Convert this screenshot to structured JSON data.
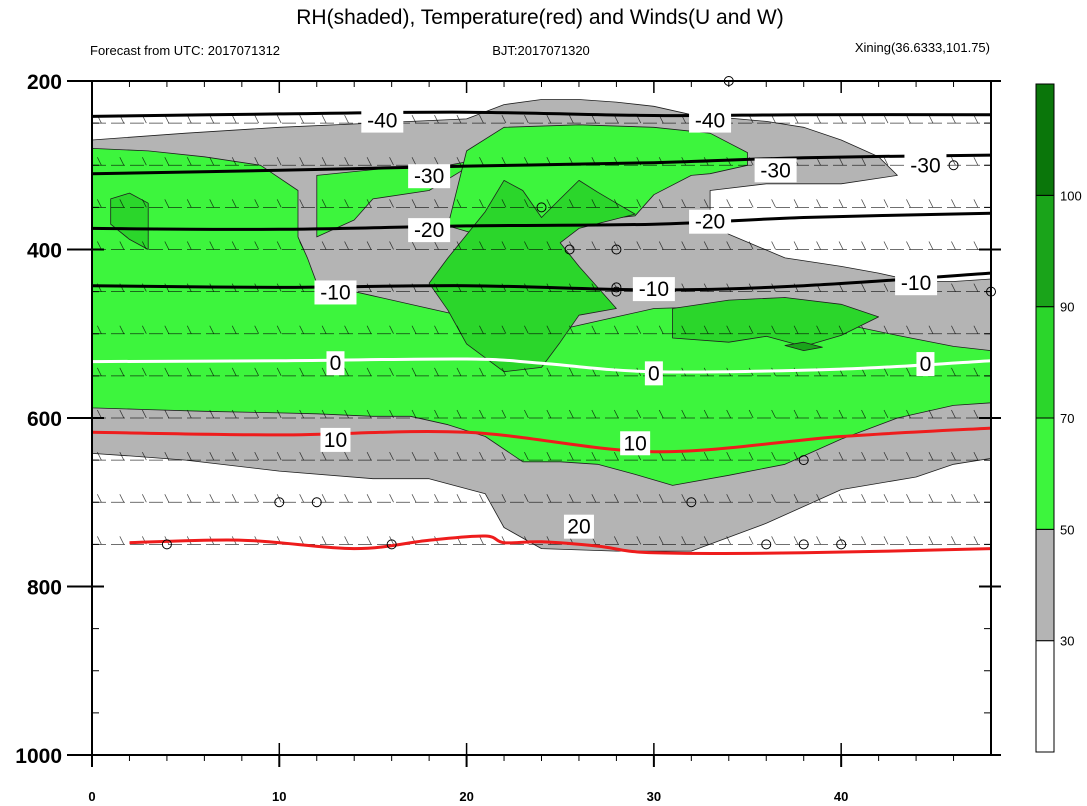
{
  "chart_data": {
    "type": "heatmap",
    "title": "RH(shaded), Temperature(red) and Winds(U and W)",
    "subtitle_left": "Forecast from UTC: 2017071312",
    "subtitle_center": "BJT:2017071320",
    "subtitle_right": "Xining(36.6333,101.75)",
    "xlabel": "",
    "ylabel": "",
    "xlim": [
      0,
      48
    ],
    "ylim": [
      1000,
      200
    ],
    "y_axis_reversed": true,
    "x_ticks": [
      0,
      10,
      20,
      30,
      40
    ],
    "y_ticks": [
      200,
      400,
      600,
      800,
      1000
    ],
    "rh_shading": {
      "levels": [
        30,
        50,
        70,
        90,
        100
      ],
      "colorbar_labels": [
        "30",
        "50",
        "70",
        "90",
        "100"
      ],
      "colors": [
        "#ffffff",
        "#b4b4b4",
        "#3df53d",
        "#2bd62b",
        "#1aa41a",
        "#0a760a"
      ],
      "regions": [
        {
          "class": "30-50",
          "points": [
            [
              0,
              270
            ],
            [
              5,
              262
            ],
            [
              10,
              255
            ],
            [
              15,
              250
            ],
            [
              20,
              245
            ],
            [
              22,
              228
            ],
            [
              24,
              222
            ],
            [
              26,
              222
            ],
            [
              28,
              225
            ],
            [
              30,
              230
            ],
            [
              32,
              240
            ],
            [
              36,
              248
            ],
            [
              38,
              255
            ],
            [
              40,
              270
            ],
            [
              42,
              290
            ],
            [
              43,
              312
            ],
            [
              40,
              322
            ],
            [
              36,
              322
            ],
            [
              33,
              330
            ],
            [
              33,
              365
            ],
            [
              34,
              382
            ],
            [
              37,
              410
            ],
            [
              40,
              420
            ],
            [
              42,
              428
            ],
            [
              44,
              438
            ],
            [
              46,
              438
            ],
            [
              48,
              435
            ],
            [
              48,
              648
            ],
            [
              46,
              655
            ],
            [
              44,
              670
            ],
            [
              40,
              685
            ],
            [
              36,
              725
            ],
            [
              32,
              758
            ],
            [
              28,
              758
            ],
            [
              24,
              755
            ],
            [
              22,
              730
            ],
            [
              21,
              690
            ],
            [
              18,
              672
            ],
            [
              15,
              672
            ],
            [
              10,
              663
            ],
            [
              5,
              650
            ],
            [
              2,
              645
            ],
            [
              0,
              642
            ]
          ]
        },
        {
          "class": "50-70",
          "points": [
            [
              0,
              280
            ],
            [
              3,
              283
            ],
            [
              6,
              290
            ],
            [
              9,
              300
            ],
            [
              11,
              330
            ],
            [
              11,
              385
            ],
            [
              11.5,
              410
            ],
            [
              12,
              440
            ],
            [
              15,
              455
            ],
            [
              18,
              470
            ],
            [
              21,
              485
            ],
            [
              23,
              492
            ],
            [
              25,
              495
            ],
            [
              28,
              480
            ],
            [
              30,
              470
            ],
            [
              33,
              468
            ],
            [
              37,
              480
            ],
            [
              40,
              488
            ],
            [
              43,
              502
            ],
            [
              46,
              515
            ],
            [
              48,
              520
            ],
            [
              48,
              582
            ],
            [
              46,
              585
            ],
            [
              43,
              600
            ],
            [
              40,
              625
            ],
            [
              37,
              655
            ],
            [
              34,
              668
            ],
            [
              31,
              680
            ],
            [
              29,
              667
            ],
            [
              27,
              655
            ],
            [
              25,
              652
            ],
            [
              23,
              652
            ],
            [
              21,
              622
            ],
            [
              19,
              608
            ],
            [
              17,
              598
            ],
            [
              15,
              598
            ],
            [
              12,
              595
            ],
            [
              10,
              594
            ],
            [
              6,
              592
            ],
            [
              3,
              590
            ],
            [
              0,
              588
            ]
          ]
        },
        {
          "class": "50-70",
          "points": [
            [
              12,
              312
            ],
            [
              16,
              303
            ],
            [
              19,
              300
            ],
            [
              20,
              296
            ],
            [
              20,
              303
            ],
            [
              18,
              330
            ],
            [
              15,
              340
            ],
            [
              14,
              365
            ],
            [
              12,
              385
            ]
          ]
        },
        {
          "class": "50-70",
          "points": [
            [
              20,
              283
            ],
            [
              22,
              255
            ],
            [
              26,
              252
            ],
            [
              30,
              255
            ],
            [
              33,
              262
            ],
            [
              35,
              285
            ],
            [
              35,
              300
            ],
            [
              33,
              310
            ],
            [
              32,
              312
            ],
            [
              30,
              335
            ],
            [
              29,
              360
            ],
            [
              25,
              370
            ],
            [
              23,
              388
            ],
            [
              21,
              385
            ],
            [
              19,
              372
            ]
          ]
        },
        {
          "class": "70-90",
          "points": [
            [
              21,
              355
            ],
            [
              22,
              318
            ],
            [
              23,
              330
            ],
            [
              24,
              362
            ],
            [
              25,
              340
            ],
            [
              26,
              318
            ],
            [
              27,
              332
            ],
            [
              28,
              345
            ],
            [
              29,
              358
            ],
            [
              26,
              375
            ],
            [
              25,
              392
            ],
            [
              26,
              420
            ],
            [
              27,
              445
            ],
            [
              28,
              470
            ],
            [
              26,
              478
            ],
            [
              25,
              510
            ],
            [
              24,
              540
            ],
            [
              22,
              545
            ],
            [
              20,
              512
            ],
            [
              19,
              472
            ],
            [
              18,
              440
            ],
            [
              19,
              410
            ]
          ]
        },
        {
          "class": "70-90",
          "points": [
            [
              31,
              470
            ],
            [
              34,
              460
            ],
            [
              37,
              457
            ],
            [
              40,
              465
            ],
            [
              42,
              480
            ],
            [
              40,
              502
            ],
            [
              38,
              515
            ],
            [
              36,
              503
            ],
            [
              34,
              510
            ],
            [
              31,
              505
            ]
          ]
        },
        {
          "class": "70-90",
          "points": [
            [
              1,
              340
            ],
            [
              2,
              333
            ],
            [
              3,
              345
            ],
            [
              3,
              400
            ],
            [
              2,
              388
            ],
            [
              1,
              370
            ]
          ]
        },
        {
          "class": "90-100",
          "points": [
            [
              37,
              514
            ],
            [
              38,
              510
            ],
            [
              39,
              516
            ],
            [
              38,
              520
            ]
          ]
        }
      ]
    },
    "temperature_contours": [
      {
        "value": -40,
        "color": "black",
        "label": "-40",
        "points": [
          [
            0,
            242
          ],
          [
            10,
            239
          ],
          [
            20,
            237
          ],
          [
            30,
            241
          ],
          [
            38,
            240
          ],
          [
            48,
            240
          ]
        ]
      },
      {
        "value": -30,
        "color": "black",
        "label": "-30",
        "points": [
          [
            0,
            310
          ],
          [
            10,
            306
          ],
          [
            20,
            301
          ],
          [
            30,
            297
          ],
          [
            38,
            291
          ],
          [
            48,
            288
          ]
        ]
      },
      {
        "value": -20,
        "color": "black",
        "label": "-20",
        "points": [
          [
            0,
            375
          ],
          [
            10,
            376
          ],
          [
            20,
            372
          ],
          [
            30,
            370
          ],
          [
            38,
            362
          ],
          [
            48,
            357
          ]
        ]
      },
      {
        "value": -10,
        "color": "black",
        "label": "-10",
        "points": [
          [
            0,
            443
          ],
          [
            10,
            445
          ],
          [
            20,
            443
          ],
          [
            30,
            448
          ],
          [
            38,
            443
          ],
          [
            48,
            428
          ]
        ]
      },
      {
        "value": 0,
        "color": "white",
        "label": "0",
        "points": [
          [
            0,
            533
          ],
          [
            10,
            532
          ],
          [
            20,
            530
          ],
          [
            24,
            535
          ],
          [
            30,
            545
          ],
          [
            40,
            542
          ],
          [
            48,
            532
          ]
        ]
      },
      {
        "value": 10,
        "color": "red",
        "label": "10",
        "points": [
          [
            0,
            617
          ],
          [
            10,
            620
          ],
          [
            20,
            617
          ],
          [
            30,
            640
          ],
          [
            40,
            622
          ],
          [
            48,
            612
          ]
        ]
      },
      {
        "value": 20,
        "color": "red",
        "label": "20",
        "points": [
          [
            2,
            748
          ],
          [
            8,
            745
          ],
          [
            14,
            755
          ],
          [
            18,
            745
          ],
          [
            21,
            740
          ],
          [
            22,
            748
          ],
          [
            24,
            747
          ],
          [
            27,
            752
          ],
          [
            30,
            760
          ],
          [
            38,
            760
          ],
          [
            48,
            755
          ]
        ]
      }
    ],
    "temperature_labels": [
      {
        "text": "-40",
        "x": 15.5,
        "y": 247
      },
      {
        "text": "-40",
        "x": 33.0,
        "y": 247
      },
      {
        "text": "-30",
        "x": 18.0,
        "y": 313
      },
      {
        "text": "-30",
        "x": 36.5,
        "y": 306
      },
      {
        "text": "-30",
        "x": 44.5,
        "y": 300
      },
      {
        "text": "-20",
        "x": 18.0,
        "y": 377
      },
      {
        "text": "-20",
        "x": 33.0,
        "y": 367
      },
      {
        "text": "-10",
        "x": 13.0,
        "y": 451
      },
      {
        "text": "-10",
        "x": 30.0,
        "y": 447
      },
      {
        "text": "-10",
        "x": 44.0,
        "y": 440
      },
      {
        "text": "0",
        "x": 13.0,
        "y": 535
      },
      {
        "text": "0",
        "x": 30.0,
        "y": 547
      },
      {
        "text": "0",
        "x": 44.5,
        "y": 536
      },
      {
        "text": "10",
        "x": 13.0,
        "y": 626
      },
      {
        "text": "10",
        "x": 29.0,
        "y": 630
      },
      {
        "text": "20",
        "x": 26.0,
        "y": 729
      }
    ],
    "wind_levels_hpa": [
      250,
      300,
      350,
      400,
      450,
      500,
      550,
      600,
      650,
      700,
      750
    ],
    "calm_wind_markers": [
      [
        34,
        200
      ],
      [
        24,
        350
      ],
      [
        28,
        400
      ],
      [
        25.5,
        400
      ],
      [
        28,
        450
      ],
      [
        10,
        700
      ],
      [
        12,
        700
      ],
      [
        32,
        700
      ],
      [
        38,
        650
      ],
      [
        4,
        750
      ],
      [
        16,
        750
      ],
      [
        36,
        750
      ],
      [
        38,
        750
      ],
      [
        40,
        750
      ],
      [
        46,
        300
      ],
      [
        48,
        450
      ],
      [
        28,
        445
      ]
    ]
  },
  "colorbar": {
    "tick_labels": [
      "30",
      "50",
      "70",
      "90",
      "100"
    ]
  }
}
